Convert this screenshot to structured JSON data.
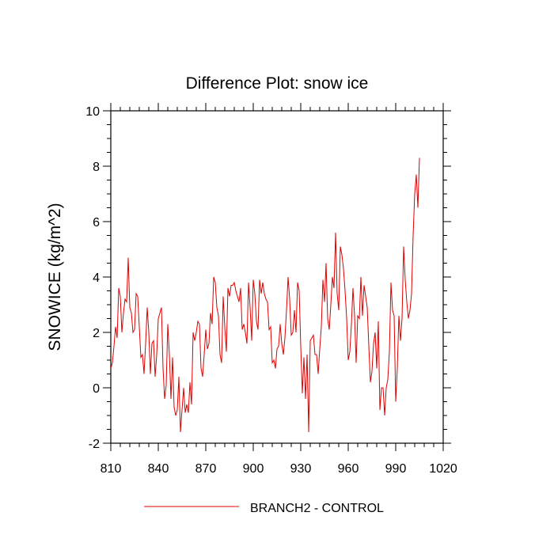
{
  "chart_data": {
    "type": "line",
    "title": "Difference Plot: snow ice",
    "xlabel": "",
    "ylabel": "SNOWICE  (kg/m^2)",
    "xlim": [
      810,
      1020
    ],
    "ylim": [
      -2,
      10
    ],
    "x_ticks": [
      810,
      840,
      870,
      900,
      930,
      960,
      990,
      1020
    ],
    "y_ticks": [
      -2,
      0,
      2,
      4,
      6,
      8,
      10
    ],
    "grid": false,
    "legend_position": "bottom",
    "series": [
      {
        "name": "BRANCH2 - CONTROL",
        "color": "#e00000",
        "x_start": 810,
        "x_step": 1,
        "values": [
          0.7,
          0.9,
          1.5,
          2.2,
          1.8,
          3.6,
          3.3,
          2.0,
          2.7,
          3.2,
          3.1,
          4.7,
          2.9,
          2.7,
          2.0,
          2.1,
          3.4,
          3.3,
          2.2,
          1.1,
          1.2,
          0.5,
          1.6,
          2.9,
          2.0,
          0.5,
          1.6,
          1.7,
          0.4,
          1.2,
          2.5,
          2.7,
          2.9,
          0.7,
          -0.4,
          0.1,
          2.3,
          1.2,
          -0.4,
          1.1,
          -0.7,
          -1.0,
          -0.8,
          0.4,
          -1.6,
          -0.8,
          0.0,
          -0.9,
          -0.6,
          -0.9,
          0.2,
          -0.6,
          2.0,
          1.7,
          2.0,
          2.4,
          2.3,
          0.7,
          0.4,
          1.2,
          2.1,
          1.4,
          1.6,
          2.7,
          2.3,
          4.0,
          3.8,
          2.9,
          2.6,
          1.2,
          0.9,
          3.3,
          2.2,
          1.3,
          3.6,
          3.3,
          3.7,
          3.7,
          3.8,
          3.5,
          3.3,
          3.1,
          3.6,
          2.1,
          2.3,
          2.0,
          1.6,
          3.8,
          2.9,
          1.7,
          3.9,
          3.4,
          2.4,
          2.1,
          3.9,
          3.4,
          3.8,
          3.4,
          3.2,
          3.1,
          2.1,
          2.2,
          0.9,
          1.0,
          0.7,
          1.4,
          1.5,
          2.3,
          1.6,
          1.2,
          1.8,
          2.8,
          4.0,
          3.2,
          1.9,
          2.0,
          2.8,
          2.0,
          3.8,
          3.5,
          1.5,
          -0.2,
          1.1,
          -0.4,
          1.2,
          -1.6,
          1.7,
          1.8,
          1.9,
          1.2,
          1.2,
          0.5,
          1.4,
          2.2,
          3.9,
          3.1,
          4.5,
          2.5,
          2.1,
          3.0,
          4.0,
          3.6,
          5.6,
          3.4,
          2.8,
          5.1,
          4.8,
          4.3,
          3.5,
          2.5,
          1.0,
          1.3,
          2.3,
          3.6,
          2.6,
          0.9,
          2.6,
          2.5,
          4.0,
          2.6,
          3.7,
          3.3,
          2.9,
          1.5,
          0.2,
          0.6,
          1.6,
          2.0,
          0.7,
          2.4,
          -0.8,
          0.0,
          0.0,
          -1.0,
          0.0,
          0.3,
          1.3,
          3.8,
          2.8,
          2.6,
          -0.5,
          0.7,
          2.6,
          1.7,
          2.5,
          5.1,
          3.9,
          3.1,
          2.5,
          2.8,
          3.4,
          5.5,
          7.0,
          7.7,
          6.5,
          8.3
        ]
      }
    ]
  }
}
